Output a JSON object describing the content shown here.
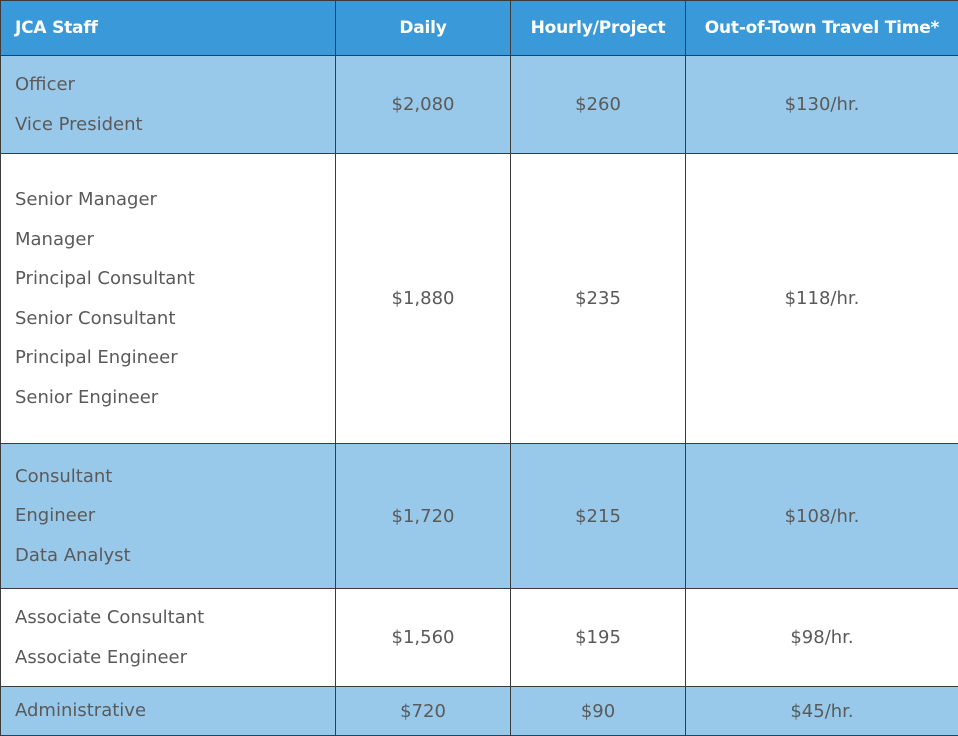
{
  "table": {
    "headers": {
      "staff": "JCA Staff",
      "daily": "Daily",
      "hourly": "Hourly/Project",
      "travel": "Out-of-Town Travel Time*"
    },
    "rows": [
      {
        "titles": [
          "Officer",
          "Vice President"
        ],
        "daily": "$2,080",
        "hourly": "$260",
        "travel": "$130/hr.",
        "shade": "blue"
      },
      {
        "titles": [
          "Senior Manager",
          "Manager",
          "Principal Consultant",
          "Senior Consultant",
          "Principal Engineer",
          "Senior Engineer"
        ],
        "daily": "$1,880",
        "hourly": "$235",
        "travel": "$118/hr.",
        "shade": "white"
      },
      {
        "titles": [
          "Consultant",
          "Engineer",
          "Data Analyst"
        ],
        "daily": "$1,720",
        "hourly": "$215",
        "travel": "$108/hr.",
        "shade": "blue"
      },
      {
        "titles": [
          "Associate Consultant",
          "Associate Engineer"
        ],
        "daily": "$1,560",
        "hourly": "$195",
        "travel": "$98/hr.",
        "shade": "white"
      },
      {
        "titles": [
          "Administrative"
        ],
        "daily": "$720",
        "hourly": "$90",
        "travel": "$45/hr.",
        "shade": "blue"
      }
    ]
  },
  "colors": {
    "header_bg": "#3a9ad9",
    "row_blue_bg": "#99c9ea",
    "row_white_bg": "#ffffff",
    "text": "#5a5a5a",
    "border": "#3b3b3b"
  }
}
